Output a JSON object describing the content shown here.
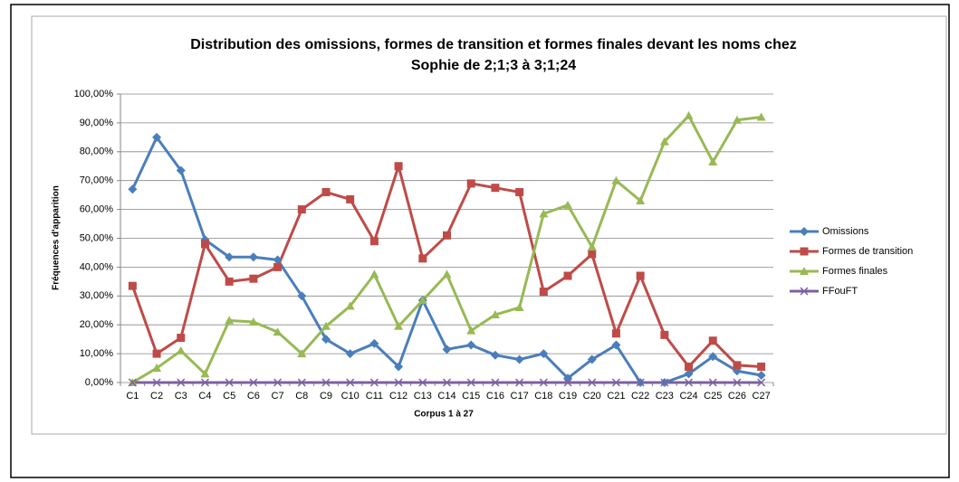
{
  "chart_data": {
    "type": "line",
    "title": [
      "Distribution des omissions, formes de transition et formes finales devant les noms chez",
      "Sophie de 2;1;3 à 3;1;24"
    ],
    "xlabel": "Corpus 1 à 27",
    "ylabel": "Fréquences d'apparition",
    "categories": [
      "C1",
      "C2",
      "C3",
      "C4",
      "C5",
      "C6",
      "C7",
      "C8",
      "C9",
      "C10",
      "C11",
      "C12",
      "C13",
      "C14",
      "C15",
      "C16",
      "C17",
      "C18",
      "C19",
      "C20",
      "C21",
      "C22",
      "C23",
      "C24",
      "C25",
      "C26",
      "C27"
    ],
    "series": [
      {
        "name": "Omissions",
        "color": "#4a7ebb",
        "marker": "diamond",
        "values": [
          67,
          85,
          73.5,
          49.5,
          43.5,
          43.5,
          42.5,
          30,
          15,
          10,
          13.5,
          5.5,
          28.5,
          11.5,
          13,
          9.5,
          8,
          10,
          1.5,
          8,
          13,
          0,
          0,
          3,
          9,
          4,
          2.5
        ]
      },
      {
        "name": "Formes de transition",
        "color": "#be4b48",
        "marker": "square",
        "values": [
          33.5,
          10,
          15.5,
          48,
          35,
          36,
          40,
          60,
          66,
          63.5,
          49,
          75,
          43,
          51,
          69,
          67.5,
          66,
          31.5,
          37,
          44.5,
          17,
          37,
          16.5,
          5.5,
          14.5,
          6,
          5.5
        ]
      },
      {
        "name": "Formes finales",
        "color": "#98b954",
        "marker": "triangle",
        "values": [
          0,
          5,
          11,
          3,
          21.5,
          21,
          17.5,
          10,
          19.5,
          26.5,
          37.5,
          19.5,
          28.5,
          37.5,
          18,
          23.5,
          26,
          58.5,
          61.5,
          47,
          70,
          63,
          83.5,
          92.5,
          76.5,
          91,
          92
        ]
      },
      {
        "name": "FFouFT",
        "color": "#7d60a0",
        "marker": "x",
        "values": [
          0,
          0,
          0,
          0,
          0,
          0,
          0,
          0,
          0,
          0,
          0,
          0,
          0,
          0,
          0,
          0,
          0,
          0,
          0,
          0,
          0,
          0,
          0,
          0,
          0,
          0,
          0
        ]
      }
    ],
    "ylim": [
      0,
      100
    ],
    "yticks": [
      {
        "value": 0,
        "label": "0,00%"
      },
      {
        "value": 10,
        "label": "10,00%"
      },
      {
        "value": 20,
        "label": "20,00%"
      },
      {
        "value": 30,
        "label": "30,00%"
      },
      {
        "value": 40,
        "label": "40,00%"
      },
      {
        "value": 50,
        "label": "50,00%"
      },
      {
        "value": 60,
        "label": "60,00%"
      },
      {
        "value": 70,
        "label": "70,00%"
      },
      {
        "value": 80,
        "label": "80,00%"
      },
      {
        "value": 90,
        "label": "90,00%"
      },
      {
        "value": 100,
        "label": "100,00%"
      }
    ],
    "grid": true,
    "legend": "right"
  }
}
